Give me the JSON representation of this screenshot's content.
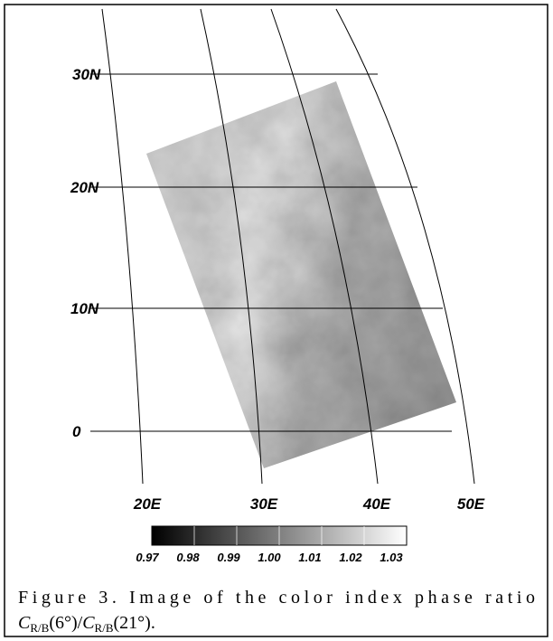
{
  "map": {
    "lat_labels": [
      "30N",
      "20N",
      "10N",
      "0"
    ],
    "lon_labels": [
      "20E",
      "30E",
      "40E",
      "50E"
    ]
  },
  "colorbar": {
    "ticks": [
      "0.97",
      "0.98",
      "0.99",
      "1.00",
      "1.01",
      "1.02",
      "1.03"
    ]
  },
  "caption": {
    "line1": "Figure 3. Image of the color index phase ratio",
    "formula": [
      "C",
      "R/B",
      "(6°)/",
      "C",
      "R/B",
      "(21°)."
    ]
  }
}
